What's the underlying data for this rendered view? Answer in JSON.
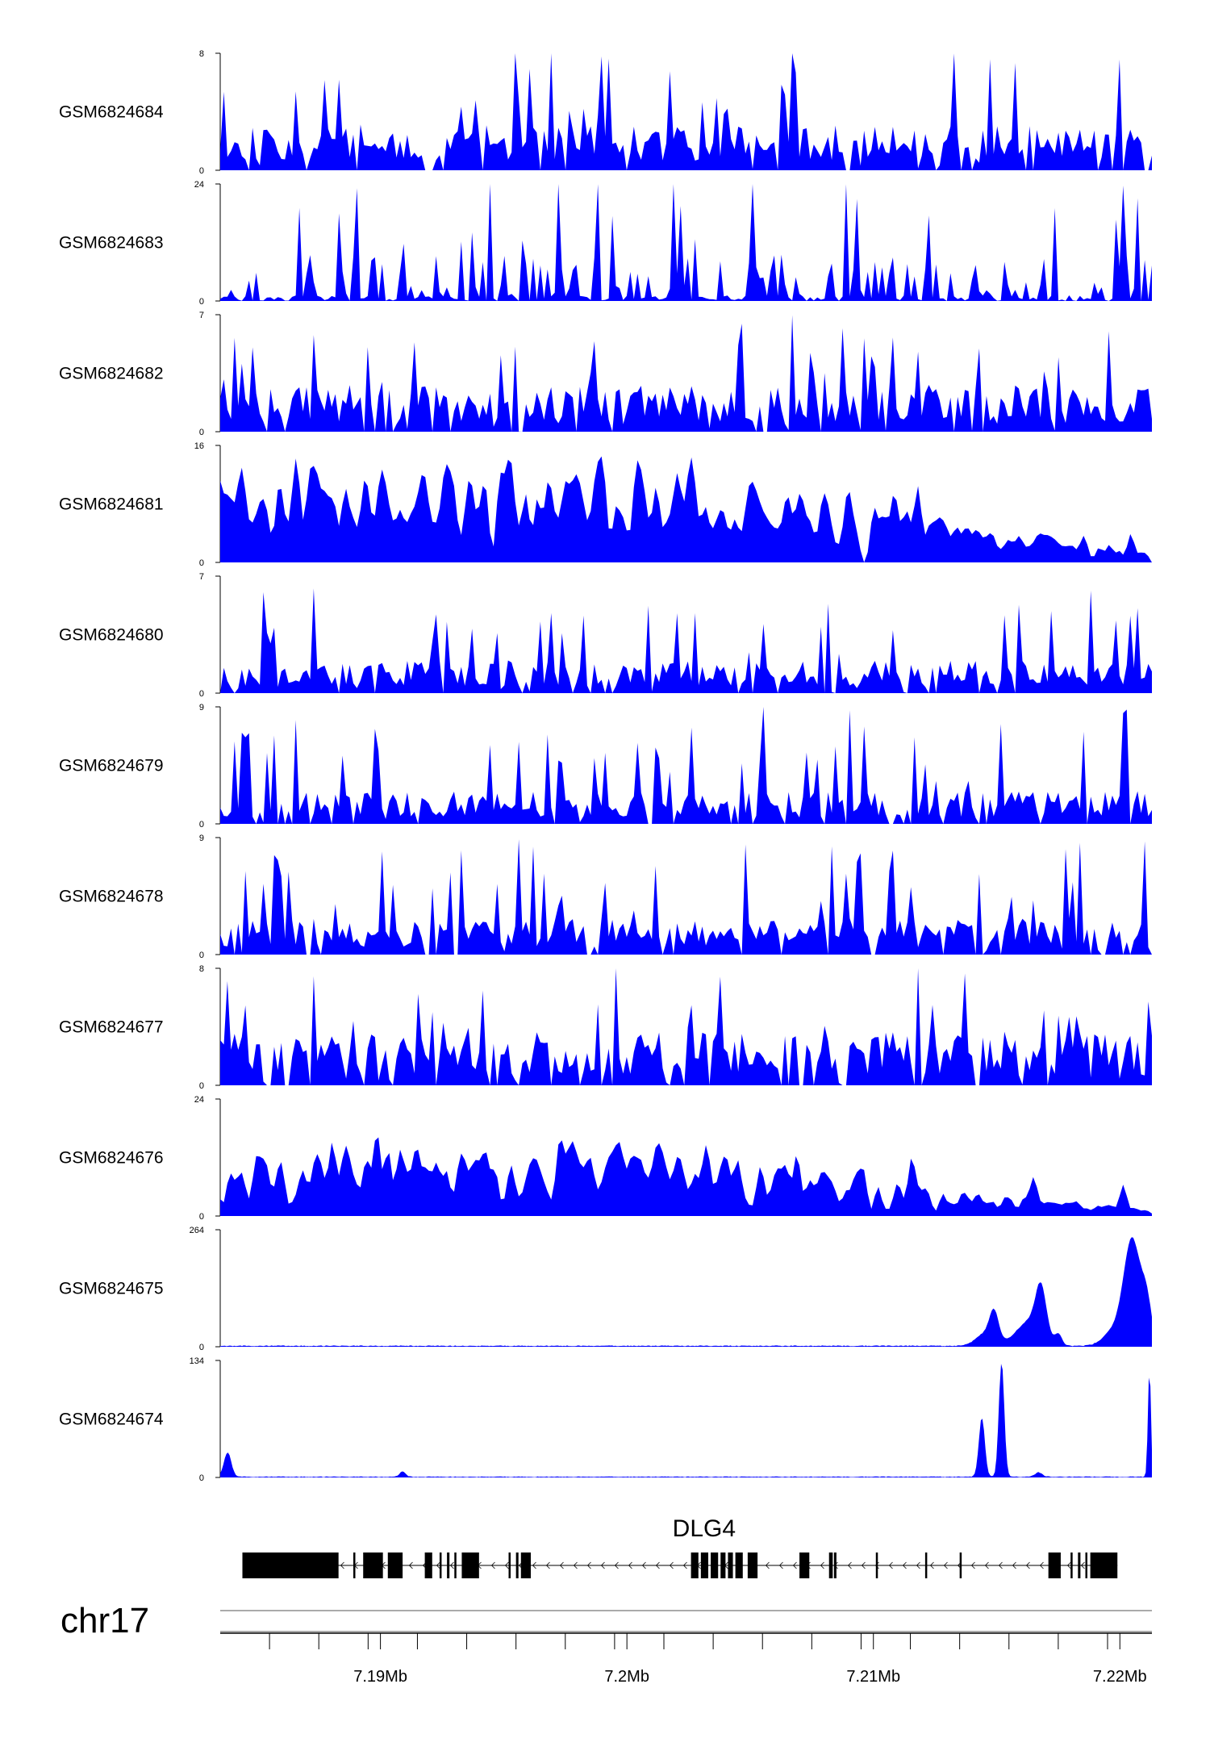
{
  "colors": {
    "signal": "#0000ff",
    "gene": "#000000",
    "axis": "#000000"
  },
  "chart_data": {
    "type": "area",
    "x_range_mb": [
      7.1835,
      7.2213
    ],
    "tracks": [
      {
        "label": "GSM6824684",
        "ymax": 8,
        "ymin": 0,
        "ymax_label": "8",
        "ymin_label": "0",
        "profile": "noisy",
        "mean": 2.2,
        "spread": 4.0,
        "seed": 11
      },
      {
        "label": "GSM6824683",
        "ymax": 24,
        "ymin": 0,
        "ymax_label": "24",
        "ymin_label": "0",
        "profile": "sparse",
        "mean": 2.0,
        "spread": 14.0,
        "seed": 23
      },
      {
        "label": "GSM6824682",
        "ymax": 7,
        "ymin": 0,
        "ymax_label": "7",
        "ymin_label": "0",
        "profile": "noisy",
        "mean": 2.0,
        "spread": 3.5,
        "seed": 37
      },
      {
        "label": "GSM6824681",
        "ymax": 16,
        "ymin": 0,
        "ymax_label": "16",
        "ymin_label": "0",
        "profile": "broad_left",
        "mean": 8.0,
        "spread": 5.0,
        "seed": 41
      },
      {
        "label": "GSM6824680",
        "ymax": 7,
        "ymin": 0,
        "ymax_label": "7",
        "ymin_label": "0",
        "profile": "noisy",
        "mean": 1.4,
        "spread": 3.8,
        "seed": 53
      },
      {
        "label": "GSM6824679",
        "ymax": 9,
        "ymin": 0,
        "ymax_label": "9",
        "ymin_label": "0",
        "profile": "noisy",
        "mean": 1.8,
        "spread": 4.5,
        "seed": 67
      },
      {
        "label": "GSM6824678",
        "ymax": 9,
        "ymin": 0,
        "ymax_label": "9",
        "ymin_label": "0",
        "profile": "noisy",
        "mean": 2.0,
        "spread": 4.5,
        "seed": 79
      },
      {
        "label": "GSM6824677",
        "ymax": 8,
        "ymin": 0,
        "ymax_label": "8",
        "ymin_label": "0",
        "profile": "noisy",
        "mean": 2.6,
        "spread": 3.6,
        "seed": 83
      },
      {
        "label": "GSM6824676",
        "ymax": 24,
        "ymin": 0,
        "ymax_label": "24",
        "ymin_label": "0",
        "profile": "broad_left",
        "mean": 9.0,
        "spread": 8.0,
        "seed": 97
      },
      {
        "label": "GSM6824675",
        "ymax": 264,
        "ymin": 0,
        "ymax_label": "264",
        "ymin_label": "0",
        "profile": "peaks",
        "baseline": 2.0,
        "peaks": [
          [
            7.2149,
            60,
            0.00018
          ],
          [
            7.2146,
            30,
            0.0004
          ],
          [
            7.2163,
            55,
            0.0005
          ],
          [
            7.2168,
            110,
            0.00022
          ],
          [
            7.2175,
            25,
            0.00015
          ],
          [
            7.2205,
            240,
            0.00035
          ],
          [
            7.2211,
            80,
            0.0002
          ],
          [
            7.2197,
            30,
            0.0004
          ]
        ]
      },
      {
        "label": "GSM6824674",
        "ymax": 134,
        "ymin": 0,
        "ymax_label": "134",
        "ymin_label": "0",
        "profile": "peaks",
        "baseline": 0.8,
        "peaks": [
          [
            7.1838,
            28,
            0.00015
          ],
          [
            7.1909,
            6,
            0.00012
          ],
          [
            7.2144,
            68,
            0.00012
          ],
          [
            7.2152,
            132,
            0.00011
          ],
          [
            7.2167,
            5,
            0.00015
          ],
          [
            7.2212,
            125,
            6e-05
          ]
        ]
      }
    ],
    "gene": {
      "name": "DLG4",
      "start_mb": 7.1844,
      "end_mb": 7.2199,
      "strand": "-",
      "exons_mb": [
        [
          7.1844,
          7.1883,
          1.0
        ],
        [
          7.1889,
          7.18895,
          1.0
        ],
        [
          7.1893,
          7.1901,
          1.0
        ],
        [
          7.1903,
          7.1909,
          1.0
        ],
        [
          7.1918,
          7.1921,
          1.0
        ],
        [
          7.1924,
          7.19245,
          1.0
        ],
        [
          7.1927,
          7.1928,
          1.0
        ],
        [
          7.193,
          7.19305,
          1.0
        ],
        [
          7.1933,
          7.194,
          1.0
        ],
        [
          7.1952,
          7.19525,
          1.0
        ],
        [
          7.1955,
          7.1956,
          1.0
        ],
        [
          7.1957,
          7.1961,
          1.0
        ],
        [
          7.2026,
          7.2029,
          1.0
        ],
        [
          7.203,
          7.2033,
          1.0
        ],
        [
          7.2034,
          7.2037,
          1.0
        ],
        [
          7.2038,
          7.204,
          1.0
        ],
        [
          7.2041,
          7.2043,
          1.0
        ],
        [
          7.2044,
          7.2047,
          1.0
        ],
        [
          7.2049,
          7.2053,
          1.0
        ],
        [
          7.207,
          7.2074,
          1.0
        ],
        [
          7.2082,
          7.20835,
          1.0
        ],
        [
          7.2084,
          7.2085,
          1.0
        ],
        [
          7.2101,
          7.21015,
          1.0
        ],
        [
          7.2121,
          7.21215,
          1.0
        ],
        [
          7.2135,
          7.21355,
          1.0
        ],
        [
          7.2171,
          7.2176,
          1.0
        ],
        [
          7.218,
          7.21805,
          1.0
        ],
        [
          7.2183,
          7.2184,
          1.0
        ],
        [
          7.2186,
          7.21865,
          1.0
        ],
        [
          7.2188,
          7.2199,
          1.0
        ]
      ]
    },
    "chromosome": "chr17",
    "x_ticks": [
      {
        "value": 7.19,
        "label": "7.19Mb"
      },
      {
        "value": 7.2,
        "label": "7.2Mb"
      },
      {
        "value": 7.21,
        "label": "7.21Mb"
      },
      {
        "value": 7.22,
        "label": "7.22Mb"
      }
    ],
    "x_minor_ticks": [
      7.1855,
      7.1875,
      7.1895,
      7.1915,
      7.1935,
      7.1955,
      7.1975,
      7.1995,
      7.2015,
      7.2035,
      7.2055,
      7.2075,
      7.2095,
      7.2115,
      7.2135,
      7.2155,
      7.2175,
      7.2195
    ]
  }
}
